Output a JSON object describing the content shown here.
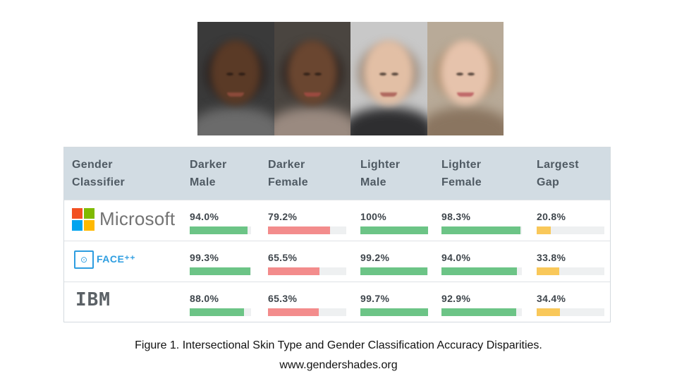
{
  "faces": [
    {
      "name": "darker-male-face",
      "bg": "#3a3a3a",
      "skin": "#5a3a26",
      "hair": "#2a2220",
      "shirt": "#6b6b6b",
      "mouth": "#8a4a3a"
    },
    {
      "name": "darker-female-face",
      "bg": "#4a4540",
      "skin": "#6a4630",
      "hair": "#2e2420",
      "shirt": "#9a8a80",
      "mouth": "#9a4a40"
    },
    {
      "name": "lighter-male-face",
      "bg": "#c8c8c8",
      "skin": "#e2bfa5",
      "hair": "#9a8878",
      "shirt": "#2e2e30",
      "mouth": "#b06a60"
    },
    {
      "name": "lighter-female-face",
      "bg": "#b8aa98",
      "skin": "#e6c3ac",
      "hair": "#b09070",
      "shirt": "#8a7560",
      "mouth": "#c06a6a"
    }
  ],
  "table": {
    "headers": [
      {
        "key": "classifier",
        "label": "Gender\nClassifier"
      },
      {
        "key": "darker_male",
        "label": "Darker\nMale"
      },
      {
        "key": "darker_female",
        "label": "Darker\nFemale"
      },
      {
        "key": "lighter_male",
        "label": "Lighter\nMale"
      },
      {
        "key": "lighter_female",
        "label": "Lighter\nFemale"
      },
      {
        "key": "largest_gap",
        "label": "Largest\nGap"
      }
    ],
    "rows": [
      {
        "classifier": "Microsoft",
        "logo_text": "Microsoft",
        "cells": [
          {
            "label": "94.0%",
            "value": 94.0,
            "color": "#6cc486"
          },
          {
            "label": "79.2%",
            "value": 79.2,
            "color": "#f38c8c"
          },
          {
            "label": "100%",
            "value": 100,
            "color": "#6cc486"
          },
          {
            "label": "98.3%",
            "value": 98.3,
            "color": "#6cc486"
          },
          {
            "label": "20.8%",
            "value": 20.8,
            "color": "#f9c85a"
          }
        ]
      },
      {
        "classifier": "Face++",
        "logo_text": "FACE⁺⁺",
        "cells": [
          {
            "label": "99.3%",
            "value": 99.3,
            "color": "#6cc486"
          },
          {
            "label": "65.5%",
            "value": 65.5,
            "color": "#f38c8c"
          },
          {
            "label": "99.2%",
            "value": 99.2,
            "color": "#6cc486"
          },
          {
            "label": "94.0%",
            "value": 94.0,
            "color": "#6cc486"
          },
          {
            "label": "33.8%",
            "value": 33.8,
            "color": "#f9c85a"
          }
        ]
      },
      {
        "classifier": "IBM",
        "logo_text": "IBM",
        "cells": [
          {
            "label": "88.0%",
            "value": 88.0,
            "color": "#6cc486"
          },
          {
            "label": "65.3%",
            "value": 65.3,
            "color": "#f38c8c"
          },
          {
            "label": "99.7%",
            "value": 99.7,
            "color": "#6cc486"
          },
          {
            "label": "92.9%",
            "value": 92.9,
            "color": "#6cc486"
          },
          {
            "label": "34.4%",
            "value": 34.4,
            "color": "#f9c85a"
          }
        ]
      }
    ]
  },
  "microsoft_colors": [
    "#f25022",
    "#7fba00",
    "#00a4ef",
    "#ffb900"
  ],
  "caption": {
    "line1": "Figure 1. Intersectional Skin Type and Gender Classification Accuracy Disparities.",
    "line2": "www.gendershades.org"
  }
}
